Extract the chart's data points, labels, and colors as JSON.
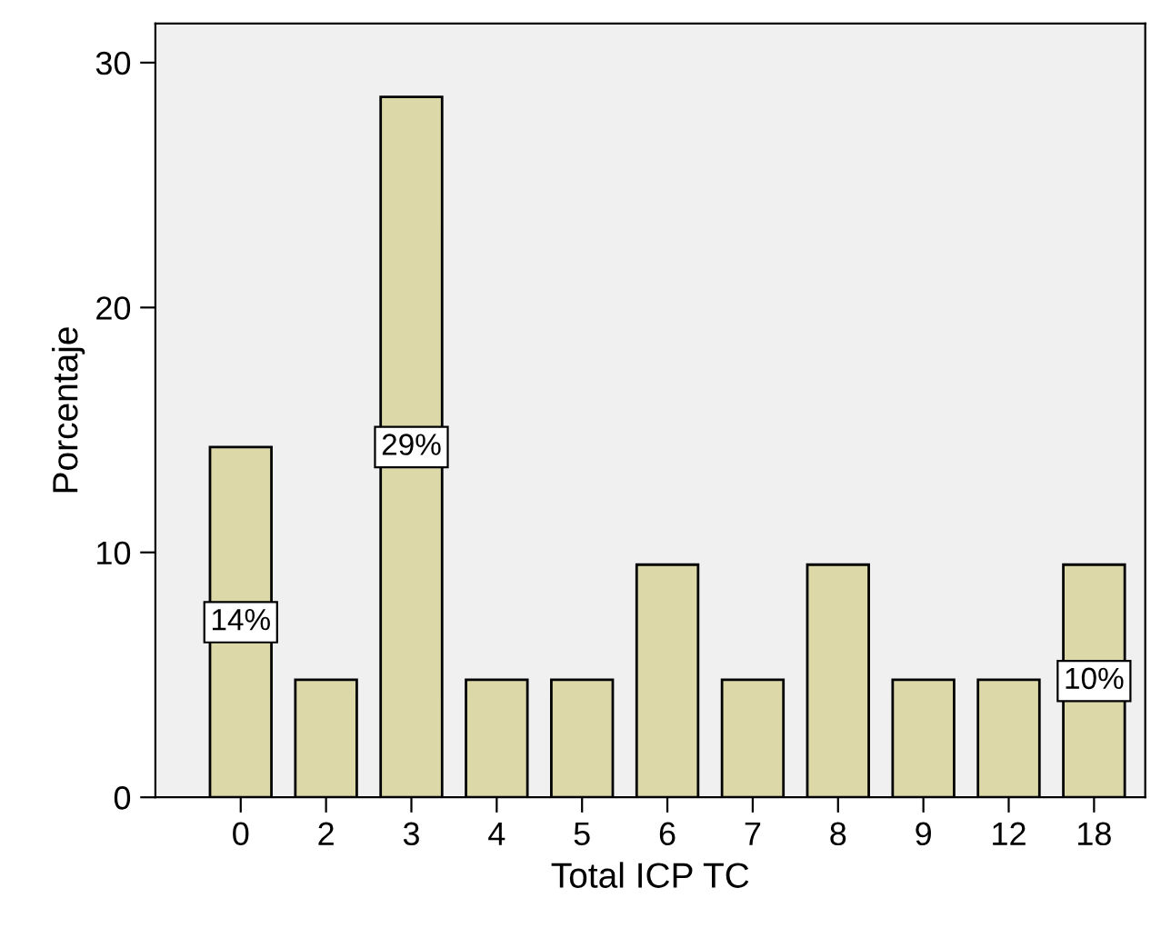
{
  "chart_data": {
    "type": "bar",
    "xlabel": "Total ICP TC",
    "ylabel": "Porcentaje",
    "categories": [
      "0",
      "2",
      "3",
      "4",
      "5",
      "6",
      "7",
      "8",
      "9",
      "12",
      "18"
    ],
    "values": [
      14.3,
      4.8,
      28.6,
      4.8,
      4.8,
      9.5,
      4.8,
      9.5,
      4.8,
      4.8,
      9.5
    ],
    "value_labels": [
      "14%",
      null,
      "29%",
      null,
      null,
      null,
      null,
      null,
      null,
      null,
      "10%"
    ],
    "color": "#dcd8a8",
    "ylim": [
      0,
      31.6
    ],
    "yticks": [
      0,
      10,
      20,
      30
    ],
    "grid": false,
    "legend": false
  }
}
